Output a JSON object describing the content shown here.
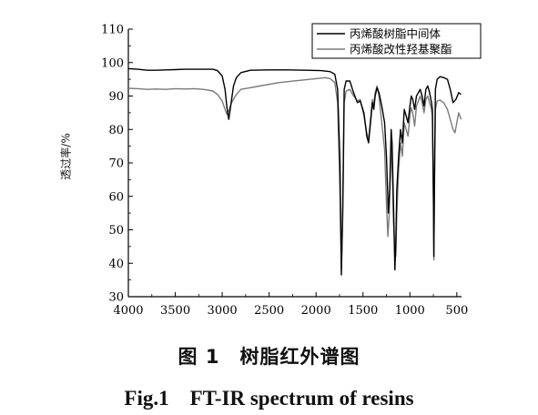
{
  "chart_data": {
    "type": "line",
    "title": "",
    "xlabel": "",
    "ylabel": "透过率/%",
    "xlim": [
      4000,
      450
    ],
    "ylim": [
      30,
      110
    ],
    "x_ticks": [
      "4000",
      "3500",
      "3000",
      "2500",
      "2000",
      "1500",
      "1000",
      "500"
    ],
    "x_tick_values": [
      4000,
      3500,
      3000,
      2500,
      2000,
      1500,
      1000,
      500
    ],
    "y_ticks": [
      "30",
      "40",
      "50",
      "60",
      "70",
      "80",
      "90",
      "100",
      "110"
    ],
    "y_tick_values": [
      30,
      40,
      50,
      60,
      70,
      80,
      90,
      100,
      110
    ],
    "legend_position": "top-right",
    "series": [
      {
        "name": "丙烯酸树脂中间体",
        "color": "#000000",
        "points": [
          [
            4000,
            98.2
          ],
          [
            3900,
            98.0
          ],
          [
            3800,
            97.7
          ],
          [
            3700,
            97.7
          ],
          [
            3600,
            97.8
          ],
          [
            3500,
            97.9
          ],
          [
            3400,
            98.0
          ],
          [
            3300,
            98.0
          ],
          [
            3200,
            98.0
          ],
          [
            3100,
            98.0
          ],
          [
            3050,
            97.6
          ],
          [
            3000,
            96.0
          ],
          [
            2970,
            92.0
          ],
          [
            2950,
            86.5
          ],
          [
            2930,
            83.0
          ],
          [
            2910,
            87.0
          ],
          [
            2880,
            93.0
          ],
          [
            2850,
            95.5
          ],
          [
            2800,
            97.0
          ],
          [
            2700,
            97.7
          ],
          [
            2500,
            97.8
          ],
          [
            2300,
            97.8
          ],
          [
            2100,
            97.7
          ],
          [
            1950,
            97.6
          ],
          [
            1850,
            97.3
          ],
          [
            1800,
            96.5
          ],
          [
            1770,
            92.0
          ],
          [
            1745,
            70.0
          ],
          [
            1730,
            36.5
          ],
          [
            1715,
            58.0
          ],
          [
            1700,
            92.0
          ],
          [
            1680,
            94.5
          ],
          [
            1640,
            94.5
          ],
          [
            1600,
            91.0
          ],
          [
            1560,
            88.0
          ],
          [
            1530,
            88.5
          ],
          [
            1490,
            85.0
          ],
          [
            1460,
            78.0
          ],
          [
            1440,
            76.0
          ],
          [
            1420,
            82.0
          ],
          [
            1400,
            88.0
          ],
          [
            1385,
            86.0
          ],
          [
            1370,
            90.0
          ],
          [
            1350,
            92.5
          ],
          [
            1330,
            91.0
          ],
          [
            1300,
            87.0
          ],
          [
            1270,
            82.0
          ],
          [
            1250,
            72.0
          ],
          [
            1230,
            55.0
          ],
          [
            1215,
            62.0
          ],
          [
            1200,
            80.0
          ],
          [
            1190,
            76.0
          ],
          [
            1175,
            57.0
          ],
          [
            1160,
            38.0
          ],
          [
            1150,
            46.0
          ],
          [
            1140,
            62.0
          ],
          [
            1120,
            72.0
          ],
          [
            1100,
            80.0
          ],
          [
            1080,
            76.0
          ],
          [
            1060,
            86.0
          ],
          [
            1040,
            84.0
          ],
          [
            1020,
            82.0
          ],
          [
            1000,
            87.0
          ],
          [
            985,
            90.0
          ],
          [
            970,
            89.0
          ],
          [
            950,
            86.0
          ],
          [
            930,
            90.0
          ],
          [
            910,
            91.0
          ],
          [
            890,
            92.0
          ],
          [
            870,
            90.0
          ],
          [
            850,
            87.0
          ],
          [
            830,
            92.0
          ],
          [
            810,
            93.0
          ],
          [
            790,
            91.0
          ],
          [
            770,
            88.0
          ],
          [
            760,
            86.0
          ],
          [
            750,
            60.0
          ],
          [
            745,
            42.0
          ],
          [
            738,
            66.0
          ],
          [
            728,
            92.0
          ],
          [
            710,
            95.0
          ],
          [
            680,
            95.8
          ],
          [
            640,
            95.5
          ],
          [
            600,
            95.0
          ],
          [
            570,
            92.0
          ],
          [
            540,
            88.0
          ],
          [
            510,
            89.0
          ],
          [
            480,
            91.0
          ],
          [
            455,
            90.5
          ]
        ]
      },
      {
        "name": "丙烯酸改性羟基聚酯",
        "color": "#7a7a7a",
        "points": [
          [
            4000,
            92.3
          ],
          [
            3900,
            92.2
          ],
          [
            3800,
            92.0
          ],
          [
            3700,
            92.1
          ],
          [
            3600,
            92.0
          ],
          [
            3500,
            92.2
          ],
          [
            3400,
            92.1
          ],
          [
            3300,
            92.2
          ],
          [
            3200,
            92.0
          ],
          [
            3100,
            91.5
          ],
          [
            3050,
            90.5
          ],
          [
            3000,
            88.5
          ],
          [
            2970,
            86.0
          ],
          [
            2950,
            84.5
          ],
          [
            2930,
            85.5
          ],
          [
            2900,
            88.0
          ],
          [
            2850,
            90.5
          ],
          [
            2800,
            92.0
          ],
          [
            2600,
            93.0
          ],
          [
            2400,
            94.0
          ],
          [
            2200,
            94.6
          ],
          [
            2000,
            95.2
          ],
          [
            1900,
            95.5
          ],
          [
            1850,
            95.2
          ],
          [
            1800,
            94.0
          ],
          [
            1770,
            88.0
          ],
          [
            1745,
            60.0
          ],
          [
            1730,
            38.0
          ],
          [
            1715,
            55.0
          ],
          [
            1700,
            88.0
          ],
          [
            1680,
            91.5
          ],
          [
            1640,
            92.0
          ],
          [
            1600,
            90.0
          ],
          [
            1560,
            88.5
          ],
          [
            1530,
            89.0
          ],
          [
            1490,
            84.0
          ],
          [
            1460,
            79.0
          ],
          [
            1440,
            77.0
          ],
          [
            1420,
            83.0
          ],
          [
            1400,
            89.0
          ],
          [
            1385,
            87.0
          ],
          [
            1370,
            91.0
          ],
          [
            1350,
            93.0
          ],
          [
            1330,
            90.0
          ],
          [
            1300,
            82.0
          ],
          [
            1270,
            74.0
          ],
          [
            1250,
            58.0
          ],
          [
            1235,
            48.0
          ],
          [
            1220,
            55.0
          ],
          [
            1200,
            75.0
          ],
          [
            1190,
            70.0
          ],
          [
            1175,
            52.0
          ],
          [
            1160,
            44.0
          ],
          [
            1150,
            42.0
          ],
          [
            1140,
            55.0
          ],
          [
            1120,
            68.0
          ],
          [
            1100,
            76.0
          ],
          [
            1080,
            72.0
          ],
          [
            1060,
            82.0
          ],
          [
            1040,
            80.0
          ],
          [
            1020,
            78.0
          ],
          [
            1000,
            84.0
          ],
          [
            985,
            86.5
          ],
          [
            970,
            85.0
          ],
          [
            950,
            81.0
          ],
          [
            930,
            87.0
          ],
          [
            910,
            88.5
          ],
          [
            890,
            90.0
          ],
          [
            870,
            88.0
          ],
          [
            850,
            85.0
          ],
          [
            830,
            89.0
          ],
          [
            810,
            90.0
          ],
          [
            790,
            88.0
          ],
          [
            770,
            86.0
          ],
          [
            760,
            84.0
          ],
          [
            750,
            60.0
          ],
          [
            745,
            41.0
          ],
          [
            738,
            62.0
          ],
          [
            728,
            86.0
          ],
          [
            710,
            88.5
          ],
          [
            680,
            88.8
          ],
          [
            640,
            88.0
          ],
          [
            600,
            86.0
          ],
          [
            570,
            83.0
          ],
          [
            540,
            80.0
          ],
          [
            520,
            79.0
          ],
          [
            500,
            82.0
          ],
          [
            480,
            85.0
          ],
          [
            455,
            83.0
          ]
        ]
      }
    ]
  },
  "caption": {
    "cn": "图 1　树脂红外谱图",
    "en": "Fig.1　FT-IR spectrum of resins"
  }
}
